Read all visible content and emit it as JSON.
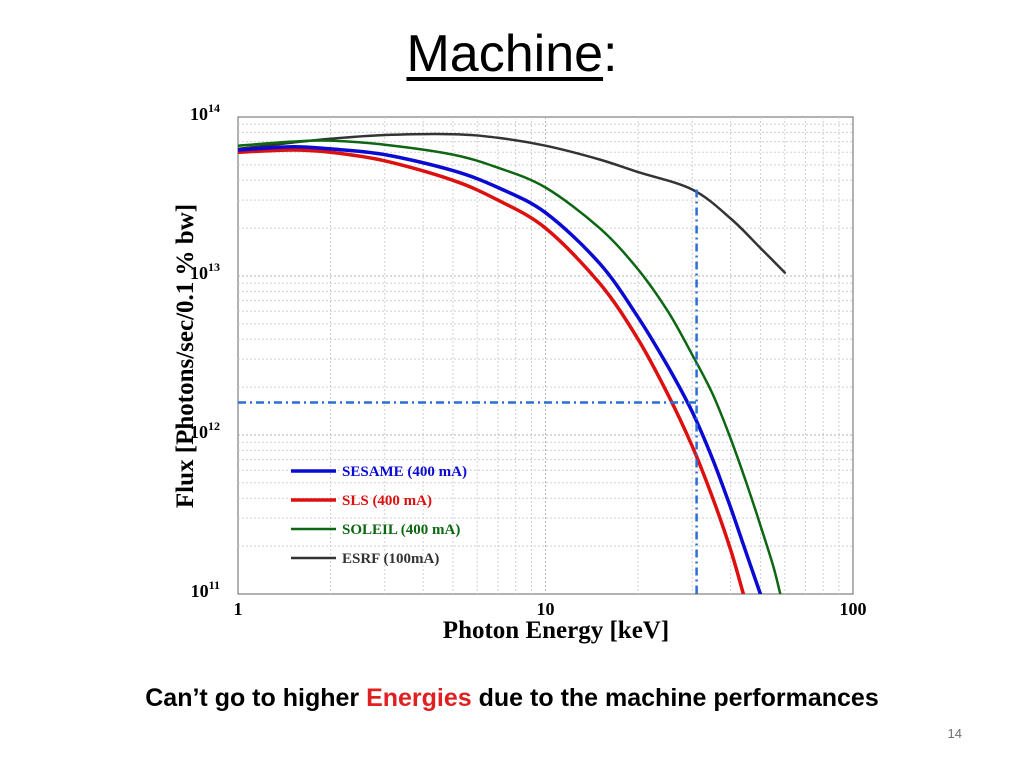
{
  "slide": {
    "title_word": "Machine",
    "title_colon": ":",
    "caption_before": "Can’t go to higher ",
    "caption_highlight": "Energies",
    "caption_after": " due to the machine performances",
    "page_number": "14"
  },
  "colors": {
    "accent_text": "#e02020",
    "sesame": "#0a0ad2",
    "sls": "#dd1010",
    "soleil": "#0c6612",
    "esrf": "#333333",
    "guide": "#2a6fd6"
  },
  "chart_data": {
    "type": "line",
    "xscale": "log",
    "yscale": "log",
    "xlim": [
      1,
      100
    ],
    "ylim": [
      100000000000.0,
      100000000000000.0
    ],
    "xlabel": "Photon Energy [keV]",
    "ylabel": "Flux [Photons/sec/0.1 % bw]",
    "x_ticks": [
      {
        "value": 1,
        "label": "1"
      },
      {
        "value": 10,
        "label": "10"
      },
      {
        "value": 100,
        "label": "100"
      }
    ],
    "y_ticks": [
      {
        "value": 100000000000.0,
        "base": "10",
        "exp": "11"
      },
      {
        "value": 1000000000000.0,
        "base": "10",
        "exp": "12"
      },
      {
        "value": 10000000000000.0,
        "base": "10",
        "exp": "13"
      },
      {
        "value": 100000000000000.0,
        "base": "10",
        "exp": "14"
      }
    ],
    "grid": true,
    "legend_position": "lower-left",
    "series": [
      {
        "name": "SESAME (400 mA)",
        "color": "#0a0ad2",
        "x": [
          1,
          1.5,
          2,
          3,
          5,
          7,
          10,
          15,
          20,
          25,
          30,
          35,
          40,
          45,
          50
        ],
        "y": [
          62000000000000.0,
          65000000000000.0,
          63000000000000.0,
          58000000000000.0,
          46000000000000.0,
          36000000000000.0,
          25000000000000.0,
          12000000000000.0,
          5500000000000.0,
          2700000000000.0,
          1400000000000.0,
          700000000000.0,
          350000000000.0,
          180000000000.0,
          100000000000.0
        ]
      },
      {
        "name": "SLS (400 mA)",
        "color": "#dd1010",
        "x": [
          1,
          1.5,
          2,
          3,
          5,
          7,
          10,
          15,
          20,
          25,
          30,
          35,
          40,
          44
        ],
        "y": [
          60000000000000.0,
          62000000000000.0,
          60000000000000.0,
          53000000000000.0,
          40000000000000.0,
          30000000000000.0,
          20000000000000.0,
          9000000000000.0,
          4000000000000.0,
          1800000000000.0,
          850000000000.0,
          400000000000.0,
          190000000000.0,
          100000000000.0
        ]
      },
      {
        "name": "SOLEIL (400 mA)",
        "color": "#0c6612",
        "x": [
          1,
          1.5,
          2,
          3,
          5,
          7,
          10,
          15,
          20,
          25,
          30,
          35,
          40,
          45,
          50,
          55,
          58
        ],
        "y": [
          66000000000000.0,
          70000000000000.0,
          71000000000000.0,
          67000000000000.0,
          58000000000000.0,
          48000000000000.0,
          36000000000000.0,
          20000000000000.0,
          11000000000000.0,
          6000000000000.0,
          3200000000000.0,
          1800000000000.0,
          950000000000.0,
          500000000000.0,
          270000000000.0,
          150000000000.0,
          100000000000.0
        ]
      },
      {
        "name": "ESRF (100mA)",
        "color": "#333333",
        "x": [
          1,
          1.5,
          2,
          3,
          5,
          7,
          10,
          15,
          20,
          30,
          40,
          50,
          60
        ],
        "y": [
          63000000000000.0,
          69000000000000.0,
          73000000000000.0,
          77000000000000.0,
          78000000000000.0,
          74000000000000.0,
          66000000000000.0,
          54000000000000.0,
          45000000000000.0,
          35000000000000.0,
          23000000000000.0,
          15000000000000.0,
          10500000000000.0
        ]
      }
    ],
    "guide_lines": {
      "x": 31,
      "y": 1600000000000.0
    }
  }
}
